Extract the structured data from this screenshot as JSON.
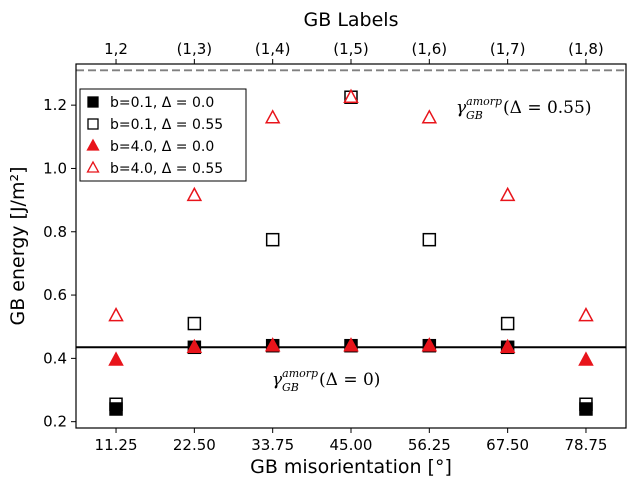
{
  "chart_data": {
    "type": "scatter",
    "xlabel": "GB misorientation [°]",
    "ylabel": "GB energy [J/m²]",
    "top_xlabel": "GB Labels",
    "x": [
      11.25,
      22.5,
      33.75,
      45.0,
      56.25,
      67.5,
      78.75
    ],
    "x_tick_labels": [
      "11.25",
      "22.50",
      "33.75",
      "45.00",
      "56.25",
      "67.50",
      "78.75"
    ],
    "top_tick_labels": [
      "1,2",
      "(1,3)",
      "(1,4)",
      "(1,5)",
      "(1,6)",
      "(1,7)",
      "(1,8)"
    ],
    "y_ticks": [
      0.2,
      0.4,
      0.6,
      0.8,
      1.0,
      1.2
    ],
    "y_tick_labels": [
      "0.2",
      "0.4",
      "0.6",
      "0.8",
      "1.0",
      "1.2"
    ],
    "xlim": [
      5.5,
      84.5
    ],
    "ylim": [
      0.18,
      1.33
    ],
    "grid": false,
    "legend_position": "upper-left",
    "series": [
      {
        "name": "b=0.1, Δ = 0.0",
        "marker": "square",
        "filled": true,
        "color": "#000000",
        "values": [
          0.24,
          0.435,
          0.44,
          0.44,
          0.44,
          0.435,
          0.24
        ]
      },
      {
        "name": "b=0.1, Δ = 0.55",
        "marker": "square",
        "filled": false,
        "color": "#000000",
        "values": [
          0.255,
          0.51,
          0.775,
          1.225,
          0.775,
          0.51,
          0.255
        ]
      },
      {
        "name": "b=4.0, Δ = 0.0",
        "marker": "triangle",
        "filled": true,
        "color": "#e8141b",
        "values": [
          0.395,
          0.435,
          0.44,
          0.44,
          0.44,
          0.435,
          0.395
        ]
      },
      {
        "name": "b=4.0, Δ = 0.55",
        "marker": "triangle",
        "filled": false,
        "color": "#e8141b",
        "values": [
          0.535,
          0.915,
          1.16,
          1.225,
          1.16,
          0.915,
          0.535
        ]
      }
    ],
    "reference_lines": [
      {
        "y": 1.31,
        "style": "dashed",
        "color": "#808080",
        "label_base": "γ",
        "label_sub": "GB",
        "label_sup": "amorp",
        "label_tail": "(Δ = 0.55)"
      },
      {
        "y": 0.435,
        "style": "solid",
        "color": "#000000",
        "label_base": "γ",
        "label_sub": "GB",
        "label_sup": "amorp",
        "label_tail": "(Δ = 0)"
      }
    ]
  }
}
